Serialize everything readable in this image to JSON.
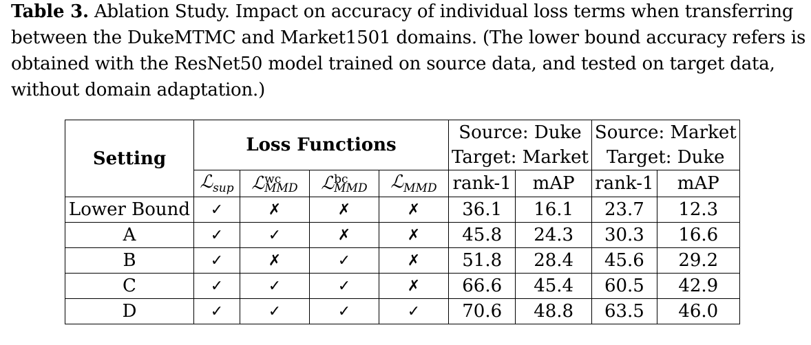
{
  "caption": {
    "label": "Table 3.",
    "text": " Ablation Study. Impact on accuracy of individual loss terms when transferring between the DukeMTMC and Market1501 domains. (The lower bound accuracy refers is obtained with the ResNet50 model trained on source data, and tested on target data, without domain adaptation.)"
  },
  "table": {
    "header_setting": "Setting",
    "header_loss": "Loss Functions",
    "group1_line1": "Source: Duke",
    "group1_line2": "Target: Market",
    "group2_line1": "Source: Market",
    "group2_line2": "Target: Duke",
    "loss_cols": [
      {
        "symbol": "ℒ",
        "sub": "sup",
        "sup": ""
      },
      {
        "symbol": "ℒ",
        "sub": "MMD",
        "sup": "wc"
      },
      {
        "symbol": "ℒ",
        "sub": "MMD",
        "sup": "bc"
      },
      {
        "symbol": "ℒ",
        "sub": "MMD",
        "sup": ""
      }
    ],
    "metric_rank": "rank-1",
    "metric_map": "mAP",
    "rows": [
      {
        "setting": "Lower Bound",
        "marks": [
          "✓",
          "✗",
          "✗",
          "✗"
        ],
        "duke_rank1": "36.1",
        "duke_map": "16.1",
        "market_rank1": "23.7",
        "market_map": "12.3"
      },
      {
        "setting": "A",
        "marks": [
          "✓",
          "✓",
          "✗",
          "✗"
        ],
        "duke_rank1": "45.8",
        "duke_map": "24.3",
        "market_rank1": "30.3",
        "market_map": "16.6"
      },
      {
        "setting": "B",
        "marks": [
          "✓",
          "✗",
          "✓",
          "✗"
        ],
        "duke_rank1": "51.8",
        "duke_map": "28.4",
        "market_rank1": "45.6",
        "market_map": "29.2"
      },
      {
        "setting": "C",
        "marks": [
          "✓",
          "✓",
          "✓",
          "✗"
        ],
        "duke_rank1": "66.6",
        "duke_map": "45.4",
        "market_rank1": "60.5",
        "market_map": "42.9"
      },
      {
        "setting": "D",
        "marks": [
          "✓",
          "✓",
          "✓",
          "✓"
        ],
        "duke_rank1": "70.6",
        "duke_map": "48.8",
        "market_rank1": "63.5",
        "market_map": "46.0"
      }
    ]
  }
}
